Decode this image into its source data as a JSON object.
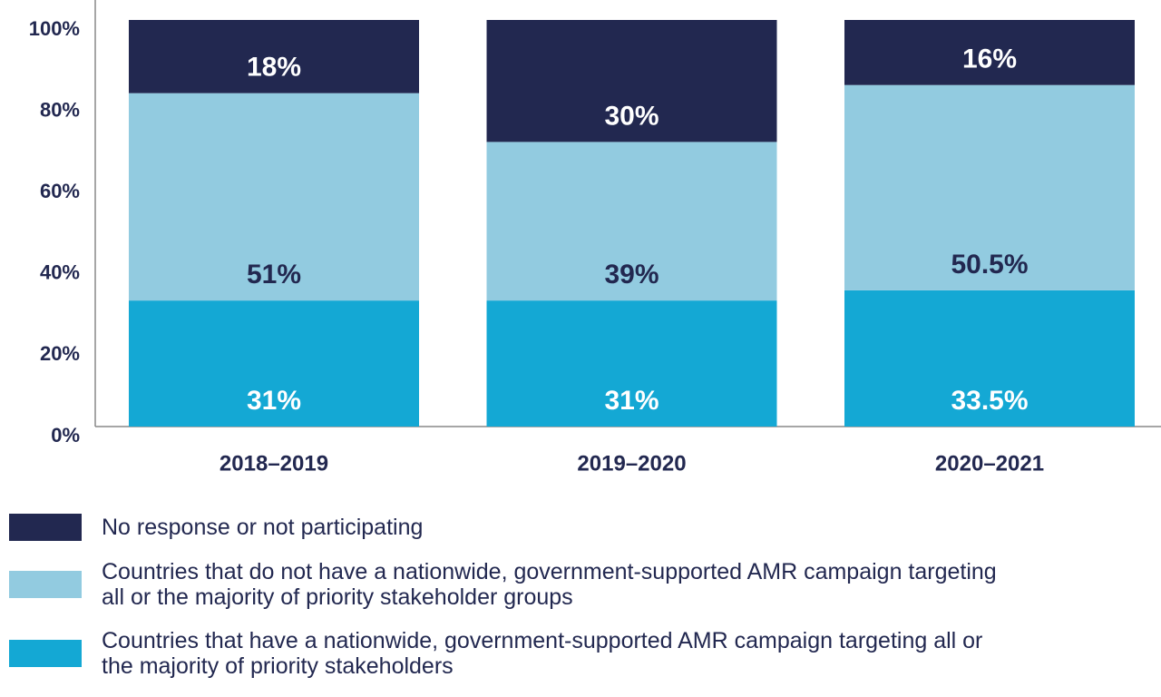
{
  "chart_data": {
    "type": "stacked_bar",
    "categories": [
      "2018–2019",
      "2019–2020",
      "2020–2021"
    ],
    "series": [
      {
        "name": "Countries that have a nationwide, government-supported AMR campaign targeting all or the majority of priority stakeholders",
        "color": "#14a8d4",
        "values": [
          31,
          31,
          33.5
        ],
        "value_labels": [
          "31%",
          "31%",
          "33.5%"
        ],
        "label_color": "#ffffff"
      },
      {
        "name": "Countries that do not have a nationwide, government-supported AMR campaign targeting all or the majority of priority stakeholder groups",
        "color": "#92cbe0",
        "values": [
          51,
          39,
          50.5
        ],
        "value_labels": [
          "51%",
          "39%",
          "50.5%"
        ],
        "label_color": "#222850"
      },
      {
        "name": "No response or not participating",
        "color": "#222850",
        "values": [
          18,
          30,
          16
        ],
        "value_labels": [
          "18%",
          "30%",
          "16%"
        ],
        "label_color": "#ffffff"
      }
    ],
    "ylim": [
      0,
      100
    ],
    "yticks": [
      {
        "value": 0,
        "label": "0%"
      },
      {
        "value": 20,
        "label": "20%"
      },
      {
        "value": 40,
        "label": "40%"
      },
      {
        "value": 60,
        "label": "60%"
      },
      {
        "value": 80,
        "label": "80%"
      },
      {
        "value": 100,
        "label": "100%"
      }
    ],
    "grid": false
  }
}
